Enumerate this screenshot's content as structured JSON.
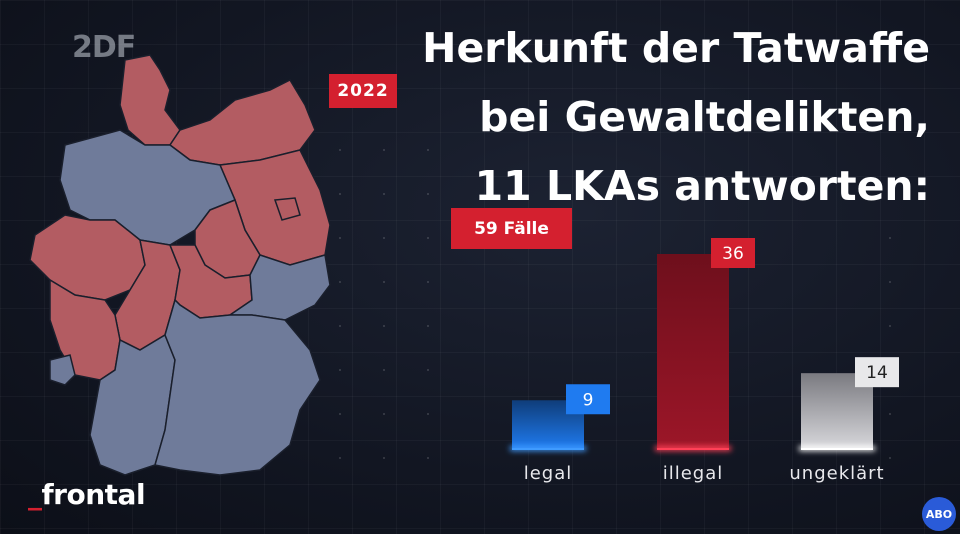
{
  "logo": {
    "text": "2DF"
  },
  "year_badge": "2022",
  "title": {
    "line1": "Herkunft der Tatwaffe",
    "line2": "bei Gewaltdelikten,",
    "line3": "11 LKAs antworten:"
  },
  "cases_badge": "59 Fälle",
  "brand": {
    "dash": "_",
    "name": "frontal"
  },
  "abo_badge": "ABO",
  "colors": {
    "map_responded": "#b35c62",
    "map_not_responded": "#6f7b9a",
    "badge_red": "#d4202f",
    "bar_legal": "#1f7bf0",
    "bar_illegal": "#8f1424",
    "bar_ungeklaert": "#c8c8cc"
  },
  "chart_data": {
    "type": "bar",
    "categories": [
      "legal",
      "illegal",
      "ungeklärt"
    ],
    "values": [
      9,
      36,
      14
    ],
    "value_labels": [
      "9",
      "36",
      "14"
    ],
    "ylim": [
      0,
      40
    ],
    "grid": false
  }
}
